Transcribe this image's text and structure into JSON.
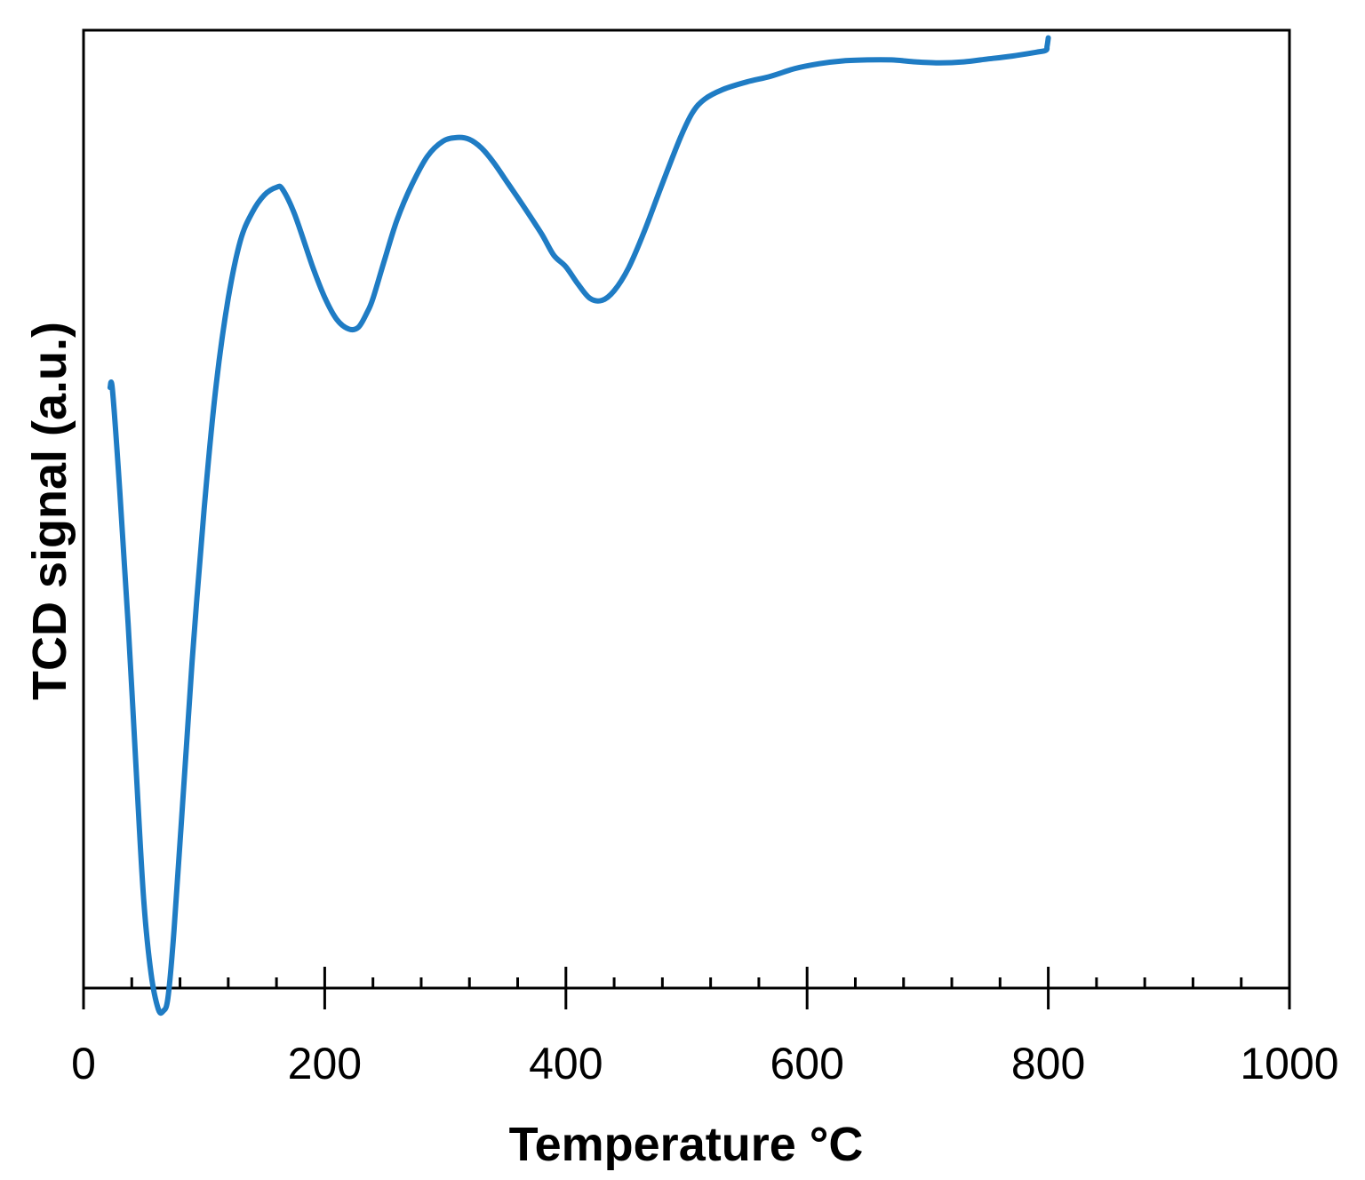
{
  "chart_data": {
    "type": "line",
    "xlabel": "Temperature °C",
    "ylabel": "TCD signal (a.u.)",
    "xlim": [
      0,
      1000
    ],
    "ylim": [
      0,
      1000
    ],
    "x_ticks": [
      0,
      200,
      400,
      600,
      800,
      1000
    ],
    "x_tick_labels": [
      "0",
      "200",
      "400",
      "600",
      "800",
      "1000"
    ],
    "x_minor_step": 40,
    "y_ticks_shown": false,
    "grid": false,
    "legend": "none",
    "line_color": "#1f7cc4",
    "series": [
      {
        "x": [
          22,
          24,
          30,
          37,
          44,
          50,
          56,
          62,
          66,
          70,
          75,
          82,
          90,
          100,
          110,
          120,
          130,
          140,
          150,
          160,
          165,
          175,
          190,
          200,
          210,
          220,
          228,
          235,
          240,
          250,
          260,
          272,
          285,
          298,
          310,
          320,
          330,
          340,
          352,
          365,
          380,
          390,
          400,
          410,
          420,
          430,
          440,
          452,
          465,
          480,
          495,
          505,
          515,
          530,
          550,
          570,
          590,
          610,
          630,
          650,
          670,
          690,
          710,
          730,
          750,
          770,
          790,
          798,
          799,
          800
        ],
        "y": [
          627,
          624,
          520,
          380,
          220,
          90,
          15,
          -22,
          -24,
          -10,
          60,
          190,
          340,
          500,
          630,
          720,
          780,
          810,
          828,
          836,
          834,
          808,
          753,
          721,
          698,
          688,
          690,
          705,
          720,
          762,
          802,
          838,
          868,
          884,
          888,
          886,
          877,
          862,
          840,
          816,
          787,
          765,
          753,
          735,
          720,
          718,
          728,
          752,
          790,
          840,
          888,
          914,
          928,
          938,
          946,
          952,
          960,
          965,
          968,
          969,
          969,
          967,
          966,
          967,
          970,
          973,
          977,
          979,
          983,
          992
        ]
      }
    ]
  }
}
